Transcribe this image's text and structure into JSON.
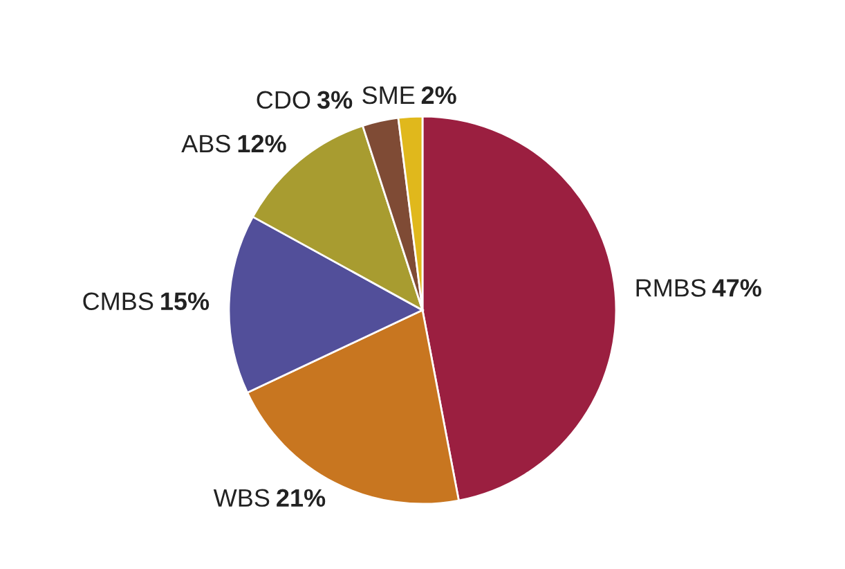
{
  "chart_data": {
    "type": "pie",
    "categories": [
      "RMBS",
      "WBS",
      "CMBS",
      "ABS",
      "CDO",
      "SME"
    ],
    "values": [
      47,
      21,
      15,
      12,
      3,
      2
    ],
    "value_labels": [
      "47%",
      "21%",
      "15%",
      "12%",
      "3%",
      "2%"
    ],
    "colors": [
      "#9b1f40",
      "#c87620",
      "#524f9a",
      "#a89c30",
      "#7f4b35",
      "#e0b81c"
    ]
  }
}
